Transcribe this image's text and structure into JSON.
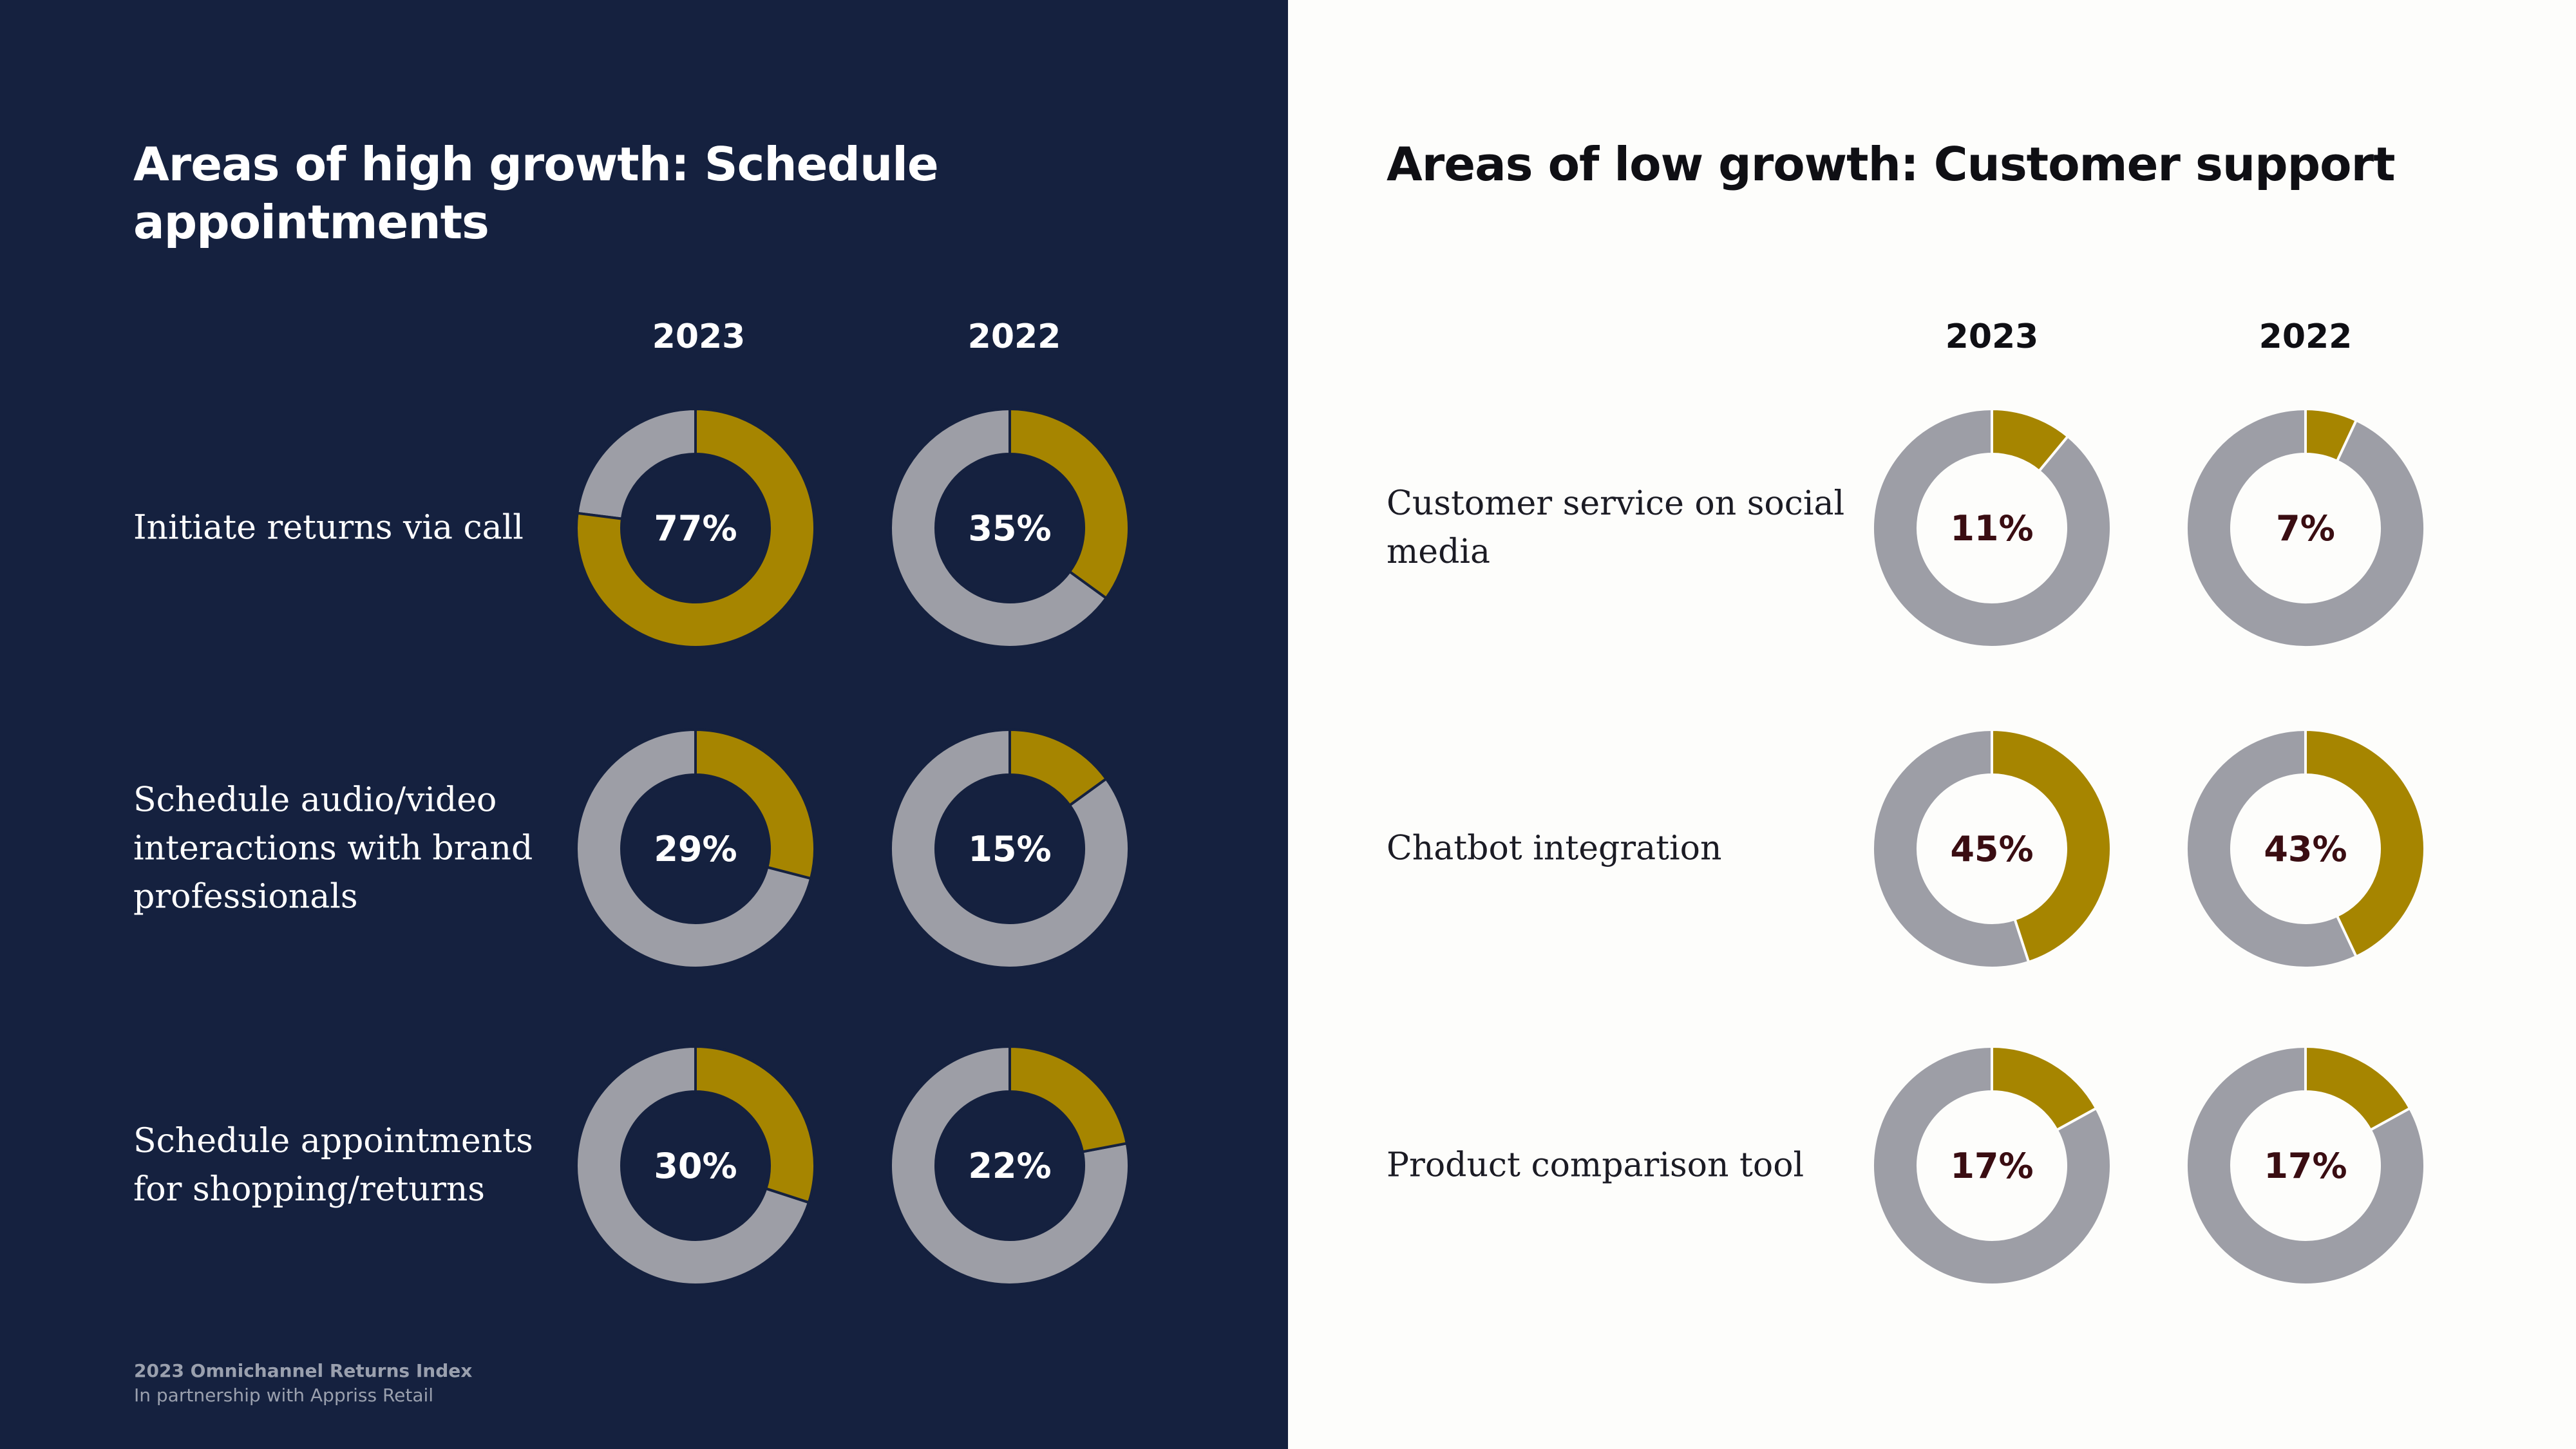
{
  "colors": {
    "left_bg": "#15213f",
    "right_bg": "#fdfdfb",
    "highlight": "#a68500",
    "remainder": "#9d9ea6"
  },
  "left": {
    "title": "Areas of high growth: Schedule appointments",
    "years": [
      "2023",
      "2022"
    ],
    "rows": [
      {
        "label": "Initiate returns via call",
        "values": [
          {
            "pct": "77%"
          },
          {
            "pct": "35%"
          }
        ]
      },
      {
        "label": "Schedule audio/video interactions with brand professionals",
        "values": [
          {
            "pct": "29%"
          },
          {
            "pct": "15%"
          }
        ]
      },
      {
        "label": "Schedule appointments for shopping/returns",
        "values": [
          {
            "pct": "30%"
          },
          {
            "pct": "22%"
          }
        ]
      }
    ]
  },
  "right": {
    "title": "Areas of low growth: Customer support",
    "years": [
      "2023",
      "2022"
    ],
    "rows": [
      {
        "label": "Customer service on social media",
        "values": [
          {
            "pct": "11%"
          },
          {
            "pct": "7%"
          }
        ]
      },
      {
        "label": "Chatbot  integration",
        "values": [
          {
            "pct": "45%"
          },
          {
            "pct": "43%"
          }
        ]
      },
      {
        "label": "Product comparison tool",
        "values": [
          {
            "pct": "17%"
          },
          {
            "pct": "17%"
          }
        ]
      }
    ]
  },
  "footer": {
    "title": "2023 Omnichannel Returns Index",
    "subtitle": "In partnership with Appriss Retail"
  },
  "chart_data": [
    {
      "type": "pie",
      "title": "Areas of high growth: Schedule appointments",
      "categories": [
        "Initiate returns via call",
        "Schedule audio/video interactions with brand professionals",
        "Schedule appointments for shopping/returns"
      ],
      "series": [
        {
          "name": "2023",
          "values": [
            77,
            29,
            30
          ]
        },
        {
          "name": "2022",
          "values": [
            35,
            15,
            22
          ]
        }
      ],
      "unit": "%"
    },
    {
      "type": "pie",
      "title": "Areas of low growth: Customer support",
      "categories": [
        "Customer service on social media",
        "Chatbot  integration",
        "Product comparison tool"
      ],
      "series": [
        {
          "name": "2023",
          "values": [
            11,
            45,
            17
          ]
        },
        {
          "name": "2022",
          "values": [
            7,
            43,
            17
          ]
        }
      ],
      "unit": "%"
    }
  ]
}
